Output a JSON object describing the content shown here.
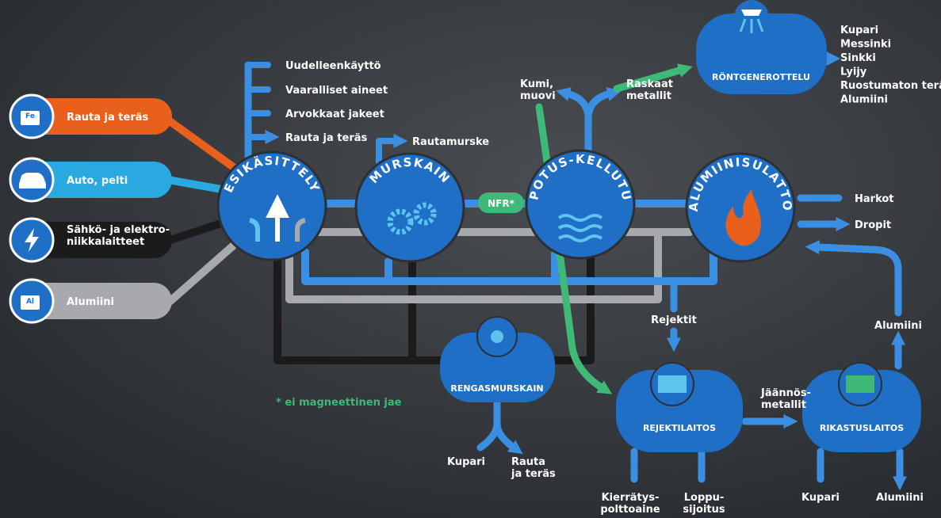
{
  "inputs": [
    {
      "icon": "Fe",
      "label": [
        "Rauta ja teräs"
      ]
    },
    {
      "label": [
        "Auto, pelti"
      ]
    },
    {
      "label": [
        "Sähkö- ja elektro-",
        "niikkalaitteet"
      ]
    },
    {
      "icon": "Al",
      "label": [
        "Alumiini"
      ]
    }
  ],
  "pretreatment_outputs": [
    "Uudelleenkäyttö",
    "Vaaralliset aineet",
    "Arvokkaat jakeet",
    "Rauta ja teräs"
  ],
  "nodes": {
    "pretreatment": "ESIKÄSITTELY",
    "crusher": "MURSKAIN",
    "sink_float": "UPOTUS-KELLUTUS",
    "aluminium_smelter": "ALUMIINISULATTO",
    "xray": "RÖNTGENEROTTELU",
    "tyre_crusher": "RENGASMURSKAIN",
    "reject_plant": "REJEKTILAITOS",
    "enrichment_plant": "RIKASTUSLAITOS"
  },
  "edges": {
    "iron_scrap": "Rautamurske",
    "nfr": "NFR*",
    "rubber_plastic": [
      "Kumi,",
      "muovi"
    ],
    "heavy_metals": [
      "Raskaat",
      "metallit"
    ],
    "rejects": "Rejektit",
    "residual_metals": [
      "Jäännös-",
      "metallit"
    ],
    "aluminium_return": "Alumiini"
  },
  "xray_outputs": [
    "Kupari",
    "Messinki",
    "Sinkki",
    "Lyijy",
    "Ruostumaton teräs",
    "Alumiini"
  ],
  "smelter_outputs": [
    "Harkot",
    "Dropit"
  ],
  "tyre_outputs": [
    [
      "Kupari"
    ],
    [
      "Rauta",
      "ja teräs"
    ]
  ],
  "reject_outputs": [
    [
      "Kierrätys-",
      "polttoaine"
    ],
    [
      "Loppu-",
      "sijoitus"
    ]
  ],
  "enrichment_outputs": [
    [
      "Kupari"
    ],
    [
      "Alumiini"
    ]
  ],
  "footnote": "* ei magneettinen jae"
}
